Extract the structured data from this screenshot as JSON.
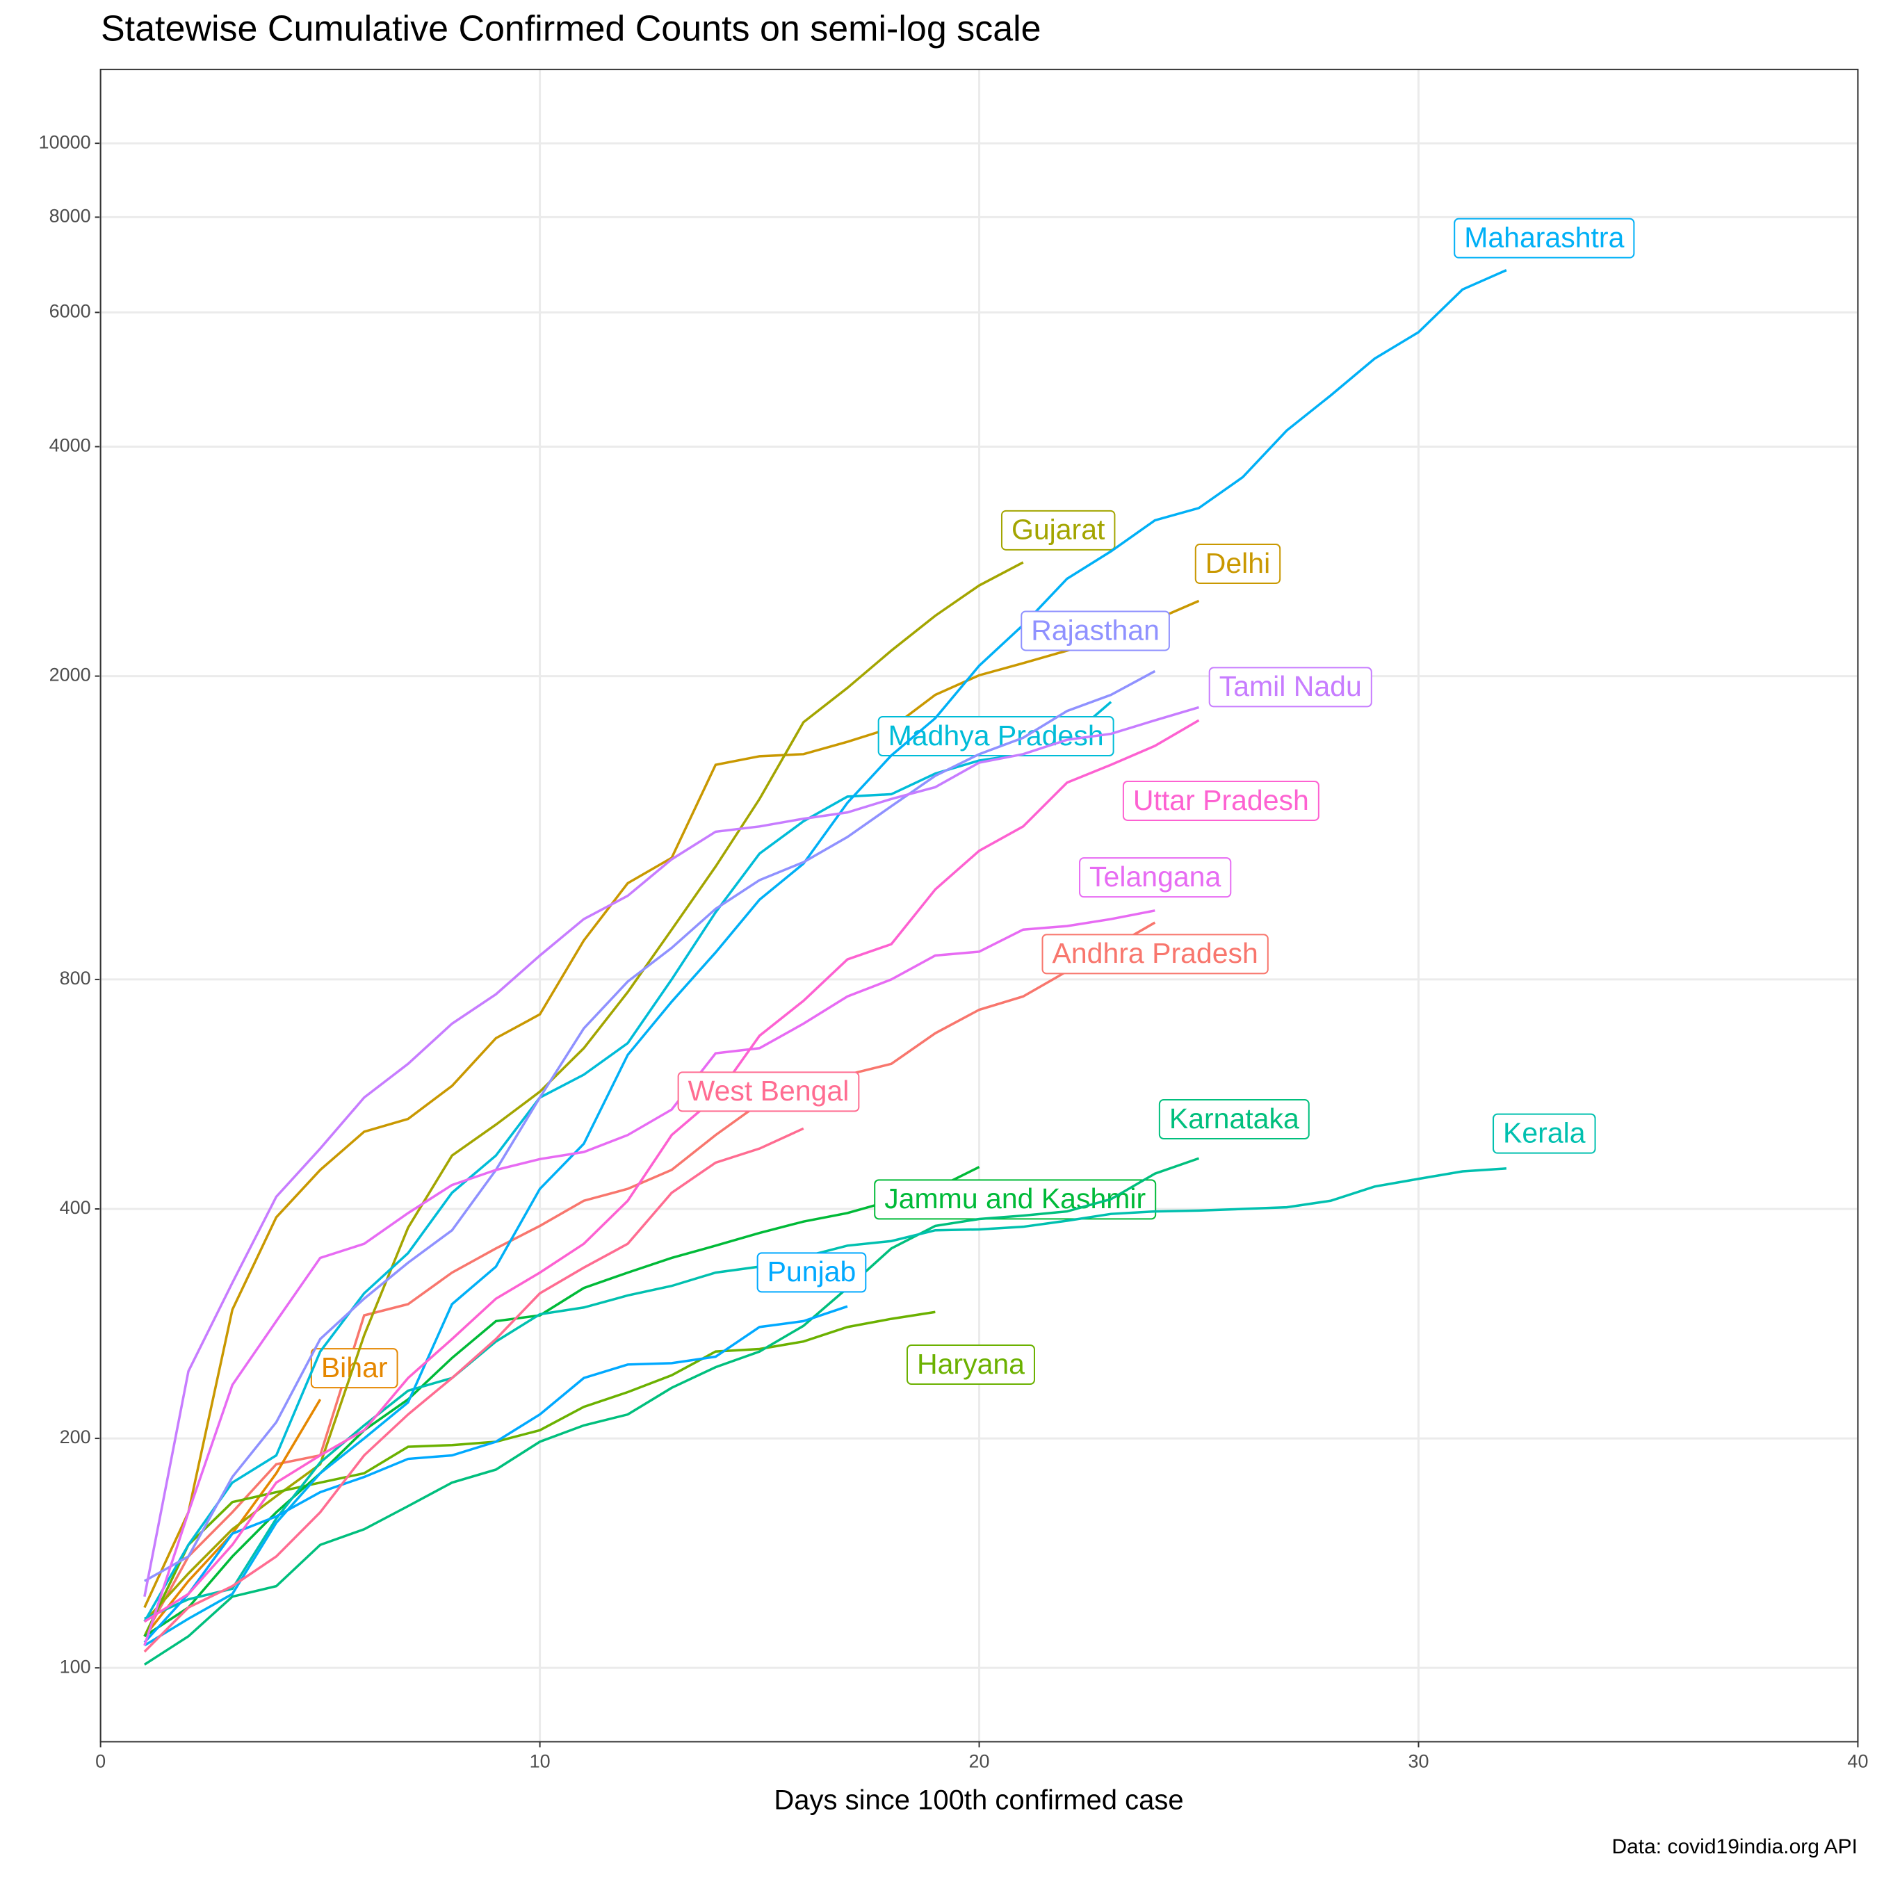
{
  "chart_data": {
    "type": "line",
    "title": "Statewise Cumulative Confirmed Counts on semi-log scale",
    "x_label": "Days since 100th confirmed case",
    "caption": "Data: covid19india.org API",
    "log_y": true,
    "grid": true,
    "xlim": [
      0,
      40
    ],
    "xticks": [
      0,
      10,
      20,
      30,
      40
    ],
    "ylim": [
      80,
      12500
    ],
    "yticks": [
      100,
      200,
      400,
      800,
      2000,
      4000,
      6000,
      8000,
      10000
    ],
    "series": [
      {
        "name": "Andhra Pradesh",
        "color": "#F8766D",
        "x": [
          1,
          2,
          3,
          4,
          5,
          6,
          7,
          8,
          9,
          10,
          11,
          12,
          13,
          14,
          15,
          16,
          17,
          18,
          19,
          20,
          21,
          22,
          23,
          24
        ],
        "values": [
          110,
          140,
          160,
          185,
          190,
          290,
          300,
          330,
          355,
          380,
          410,
          425,
          450,
          500,
          550,
          580,
          600,
          620,
          680,
          730,
          760,
          820,
          880,
          950
        ]
      },
      {
        "name": "Bihar",
        "color": "#E58700",
        "x": [
          1,
          2,
          3,
          4,
          5
        ],
        "values": [
          110,
          130,
          150,
          180,
          225
        ]
      },
      {
        "name": "Delhi",
        "color": "#C99800",
        "x": [
          1,
          2,
          3,
          4,
          5,
          6,
          7,
          8,
          9,
          10,
          11,
          12,
          13,
          14,
          15,
          16,
          17,
          18,
          19,
          20,
          21,
          22,
          23,
          24,
          25
        ],
        "values": [
          120,
          160,
          295,
          390,
          450,
          505,
          525,
          580,
          670,
          720,
          900,
          1070,
          1155,
          1530,
          1570,
          1580,
          1640,
          1710,
          1890,
          2005,
          2080,
          2160,
          2250,
          2370,
          2510
        ]
      },
      {
        "name": "Gujarat",
        "color": "#A3A500",
        "x": [
          1,
          2,
          3,
          4,
          5,
          6,
          7,
          8,
          9,
          10,
          11,
          12,
          13,
          14,
          15,
          16,
          17,
          18,
          19,
          20,
          21
        ],
        "values": [
          115,
          133,
          152,
          168,
          185,
          273,
          378,
          470,
          516,
          570,
          650,
          770,
          930,
          1125,
          1380,
          1740,
          1930,
          2160,
          2400,
          2630,
          2820
        ]
      },
      {
        "name": "Haryana",
        "color": "#6BB100",
        "x": [
          1,
          2,
          3,
          4,
          5,
          6,
          7,
          8,
          9,
          10,
          11,
          12,
          13,
          14,
          15,
          16,
          17,
          18,
          19
        ],
        "values": [
          110,
          145,
          165,
          170,
          175,
          180,
          195,
          196,
          198,
          205,
          220,
          230,
          242,
          260,
          262,
          268,
          280,
          287,
          293
        ]
      },
      {
        "name": "Jammu and Kashmir",
        "color": "#00BA38",
        "x": [
          1,
          2,
          3,
          4,
          5,
          6,
          7,
          8,
          9,
          10,
          11,
          12,
          13,
          14,
          15,
          16,
          17,
          18,
          19,
          20
        ],
        "values": [
          110,
          120,
          140,
          160,
          180,
          205,
          225,
          255,
          285,
          290,
          315,
          330,
          345,
          358,
          372,
          385,
          395,
          410,
          425,
          454
        ]
      },
      {
        "name": "Karnataka",
        "color": "#00BF7D",
        "x": [
          1,
          2,
          3,
          4,
          5,
          6,
          7,
          8,
          9,
          10,
          11,
          12,
          13,
          14,
          15,
          16,
          17,
          18,
          19,
          20,
          21,
          22,
          23,
          24,
          25
        ],
        "values": [
          101,
          110,
          124,
          128,
          145,
          152,
          163,
          175,
          182,
          198,
          208,
          215,
          233,
          248,
          260,
          281,
          315,
          355,
          380,
          388,
          392,
          397,
          412,
          445,
          466
        ]
      },
      {
        "name": "Kerala",
        "color": "#00C0AF",
        "x": [
          1,
          2,
          3,
          4,
          5,
          6,
          7,
          8,
          9,
          10,
          11,
          12,
          13,
          14,
          15,
          16,
          17,
          18,
          19,
          20,
          21,
          22,
          23,
          24,
          25,
          26,
          27,
          28,
          29,
          30,
          31,
          32
        ],
        "values": [
          116,
          123,
          127,
          157,
          186,
          208,
          231,
          240,
          268,
          291,
          297,
          308,
          317,
          330,
          336,
          346,
          358,
          363,
          375,
          376,
          379,
          386,
          394,
          397,
          398,
          400,
          402,
          410,
          428,
          438,
          448,
          452
        ]
      },
      {
        "name": "Madhya Pradesh",
        "color": "#00BCD8",
        "x": [
          1,
          2,
          3,
          4,
          5,
          6,
          7,
          8,
          9,
          10,
          11,
          12,
          13,
          14,
          15,
          16,
          17,
          18,
          19,
          20,
          21,
          22,
          23
        ],
        "values": [
          115,
          145,
          175,
          190,
          260,
          310,
          350,
          420,
          470,
          560,
          600,
          660,
          800,
          980,
          1170,
          1290,
          1390,
          1400,
          1490,
          1550,
          1580,
          1650,
          1850
        ]
      },
      {
        "name": "Maharashtra",
        "color": "#00B0F6",
        "x": [
          1,
          2,
          3,
          4,
          5,
          6,
          7,
          8,
          9,
          10,
          11,
          12,
          13,
          14,
          15,
          16,
          17,
          18,
          19,
          20,
          21,
          22,
          23,
          24,
          25,
          26,
          27,
          28,
          29,
          30,
          31,
          32
        ],
        "values": [
          107,
          116,
          125,
          155,
          180,
          200,
          223,
          300,
          336,
          425,
          487,
          637,
          748,
          868,
          1018,
          1135,
          1364,
          1574,
          1761,
          2064,
          2334,
          2684,
          2916,
          3202,
          3323,
          3648,
          4200,
          4669,
          5218,
          5652,
          6430,
          6817
        ]
      },
      {
        "name": "Punjab",
        "color": "#00A9FF",
        "x": [
          1,
          2,
          3,
          4,
          5,
          6,
          7,
          8,
          9,
          10,
          11,
          12,
          13,
          14,
          15,
          16,
          17
        ],
        "values": [
          108,
          125,
          150,
          158,
          170,
          178,
          188,
          190,
          198,
          215,
          240,
          250,
          251,
          256,
          280,
          285,
          298
        ]
      },
      {
        "name": "Rajasthan",
        "color": "#8F91FF",
        "x": [
          1,
          2,
          3,
          4,
          5,
          6,
          7,
          8,
          9,
          10,
          11,
          12,
          13,
          14,
          15,
          16,
          17,
          18,
          19,
          20,
          21,
          22,
          23,
          24
        ],
        "values": [
          130,
          140,
          178,
          210,
          270,
          305,
          340,
          375,
          450,
          560,
          690,
          795,
          880,
          990,
          1080,
          1140,
          1230,
          1350,
          1480,
          1580,
          1660,
          1800,
          1890,
          2030
        ]
      },
      {
        "name": "Tamil Nadu",
        "color": "#C77CFF",
        "x": [
          1,
          2,
          3,
          4,
          5,
          6,
          7,
          8,
          9,
          10,
          11,
          12,
          13,
          14,
          15,
          16,
          17,
          18,
          19,
          20,
          21,
          22,
          23,
          24,
          25
        ],
        "values": [
          124,
          245,
          320,
          415,
          480,
          560,
          620,
          700,
          765,
          860,
          960,
          1030,
          1150,
          1250,
          1270,
          1300,
          1325,
          1380,
          1430,
          1540,
          1580,
          1650,
          1680,
          1750,
          1820
        ]
      },
      {
        "name": "Telangana",
        "color": "#E76BF3",
        "x": [
          1,
          2,
          3,
          4,
          5,
          6,
          7,
          8,
          9,
          10,
          11,
          12,
          13,
          14,
          15,
          16,
          17,
          18,
          19,
          20,
          21,
          22,
          23,
          24
        ],
        "values": [
          107,
          160,
          235,
          285,
          345,
          360,
          395,
          430,
          450,
          465,
          475,
          500,
          540,
          640,
          650,
          700,
          760,
          800,
          860,
          870,
          930,
          940,
          960,
          985
        ]
      },
      {
        "name": "Uttar Pradesh",
        "color": "#FD61D1",
        "x": [
          1,
          2,
          3,
          4,
          5,
          6,
          7,
          8,
          9,
          10,
          11,
          12,
          13,
          14,
          15,
          16,
          17,
          18,
          19,
          20,
          21,
          22,
          23,
          24,
          25
        ],
        "values": [
          115,
          125,
          145,
          175,
          190,
          205,
          240,
          270,
          305,
          330,
          360,
          410,
          500,
          560,
          675,
          750,
          850,
          890,
          1050,
          1180,
          1270,
          1450,
          1530,
          1620,
          1750
        ]
      },
      {
        "name": "West Bengal",
        "color": "#FF6C91",
        "x": [
          1,
          2,
          3,
          4,
          5,
          6,
          7,
          8,
          9,
          10,
          11,
          12,
          13,
          14,
          15,
          16
        ],
        "values": [
          105,
          120,
          128,
          140,
          160,
          190,
          215,
          240,
          270,
          310,
          335,
          360,
          420,
          460,
          480,
          510
        ]
      }
    ]
  }
}
